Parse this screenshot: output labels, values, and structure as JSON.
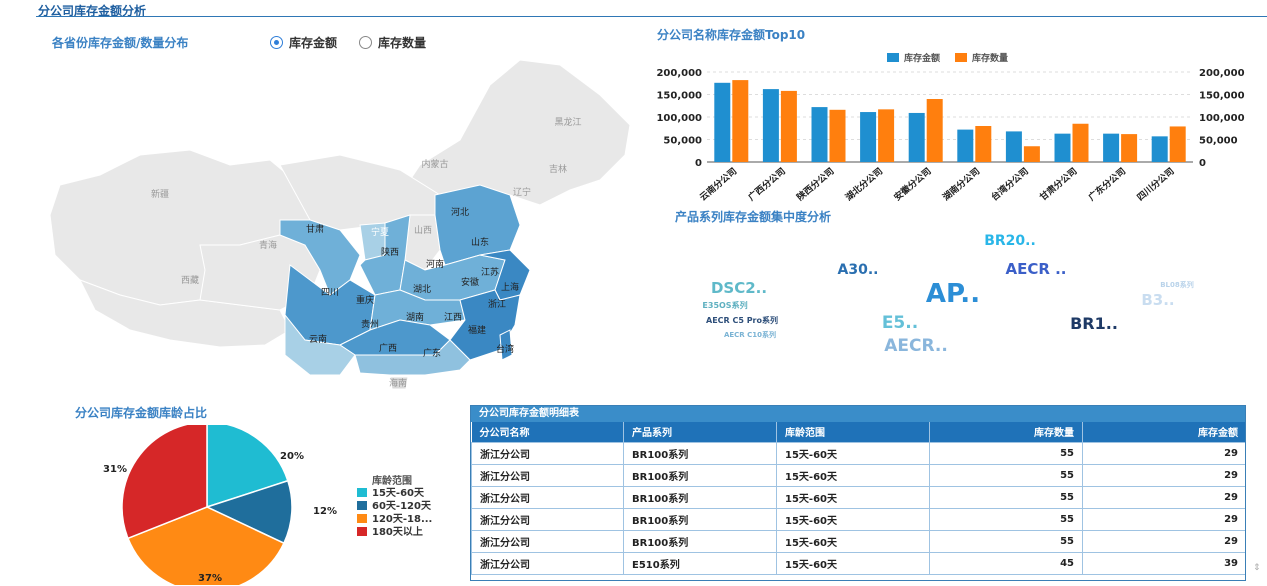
{
  "page_title": "分公司库存金额分析",
  "map_panel": {
    "title": "各省份库存金额/数量分布",
    "radio_options": [
      {
        "label": "库存金额",
        "selected": true
      },
      {
        "label": "库存数量",
        "selected": false
      }
    ],
    "province_labels": [
      "黑龙江",
      "吉林",
      "辽宁",
      "内蒙古",
      "新疆",
      "西藏",
      "青海",
      "甘肃",
      "宁夏",
      "山西",
      "河北",
      "山东",
      "陕西",
      "河南",
      "江苏",
      "安徽",
      "上海",
      "四川",
      "重庆",
      "湖北",
      "浙江",
      "贵州",
      "湖南",
      "江西",
      "福建",
      "云南",
      "广西",
      "广东",
      "台湾",
      "海南"
    ]
  },
  "bar_panel": {
    "title": "分公司名称库存金额Top10",
    "chart_data": {
      "type": "bar",
      "categories": [
        "云南分公司",
        "广西分公司",
        "陕西分公司",
        "湖北分公司",
        "安徽分公司",
        "湖南分公司",
        "台湾分公司",
        "甘肃分公司",
        "广东分公司",
        "四川分公司"
      ],
      "series": [
        {
          "name": "库存金额",
          "values": [
            176000,
            162000,
            122000,
            111000,
            109000,
            72000,
            68000,
            63000,
            63000,
            57000
          ],
          "color": "#1f8fd0"
        },
        {
          "name": "库存数量",
          "values": [
            182000,
            158000,
            116000,
            117000,
            140000,
            80000,
            35000,
            85000,
            62000,
            79000
          ],
          "color": "#ff7f0e"
        }
      ],
      "y_ticks": [
        "200,000",
        "150,000",
        "100,000",
        "50,000",
        "0"
      ],
      "ylim": [
        0,
        200000
      ],
      "legend": "top-center",
      "grid": true
    }
  },
  "wordcloud_panel": {
    "title": "产品系列库存金额集中度分析",
    "words": [
      {
        "text": "BR20..",
        "color": "#29b6e8"
      },
      {
        "text": "A30..",
        "color": "#2a6fb0"
      },
      {
        "text": "AECR ..",
        "color": "#3b5fc8"
      },
      {
        "text": "BL08系列",
        "color": "#b9d3ea"
      },
      {
        "text": "DSC2..",
        "color": "#5fb9c9"
      },
      {
        "text": "AP..",
        "color": "#2c8ed6"
      },
      {
        "text": "B3..",
        "color": "#c9ddf0"
      },
      {
        "text": "E35OS系列",
        "color": "#5fb0c0"
      },
      {
        "text": "AECR C5 Pro系列",
        "color": "#2e4f7a"
      },
      {
        "text": "E5..",
        "color": "#64c0d8"
      },
      {
        "text": "BR1..",
        "color": "#1e3a66"
      },
      {
        "text": "AECR C10系列",
        "color": "#7ab3d4"
      },
      {
        "text": "AECR..",
        "color": "#8ab6dc"
      }
    ]
  },
  "pie_panel": {
    "title": "分公司库存金额库龄占比",
    "legend_title": "库龄范围",
    "chart_data": {
      "type": "pie",
      "slices": [
        {
          "label": "15天-60天",
          "value": 20,
          "display": "20%",
          "color": "#1fbcd2"
        },
        {
          "label": "60天-120天",
          "value": 12,
          "display": "12%",
          "color": "#1f6e9c"
        },
        {
          "label": "120天-18...",
          "value": 37,
          "display": "37%",
          "color": "#ff8a14"
        },
        {
          "label": "180天以上",
          "value": 31,
          "display": "31%",
          "color": "#d62728"
        }
      ]
    }
  },
  "table_panel": {
    "title": "分公司库存金额明细表",
    "columns": [
      "分公司名称",
      "产品系列",
      "库龄范围",
      "库存数量",
      "库存金额"
    ],
    "rows": [
      [
        "浙江分公司",
        "BR100系列",
        "15天-60天",
        "55",
        "29"
      ],
      [
        "浙江分公司",
        "BR100系列",
        "15天-60天",
        "55",
        "29"
      ],
      [
        "浙江分公司",
        "BR100系列",
        "15天-60天",
        "55",
        "29"
      ],
      [
        "浙江分公司",
        "BR100系列",
        "15天-60天",
        "55",
        "29"
      ],
      [
        "浙江分公司",
        "BR100系列",
        "15天-60天",
        "55",
        "29"
      ],
      [
        "浙江分公司",
        "E510系列",
        "15天-60天",
        "45",
        "39"
      ]
    ]
  }
}
